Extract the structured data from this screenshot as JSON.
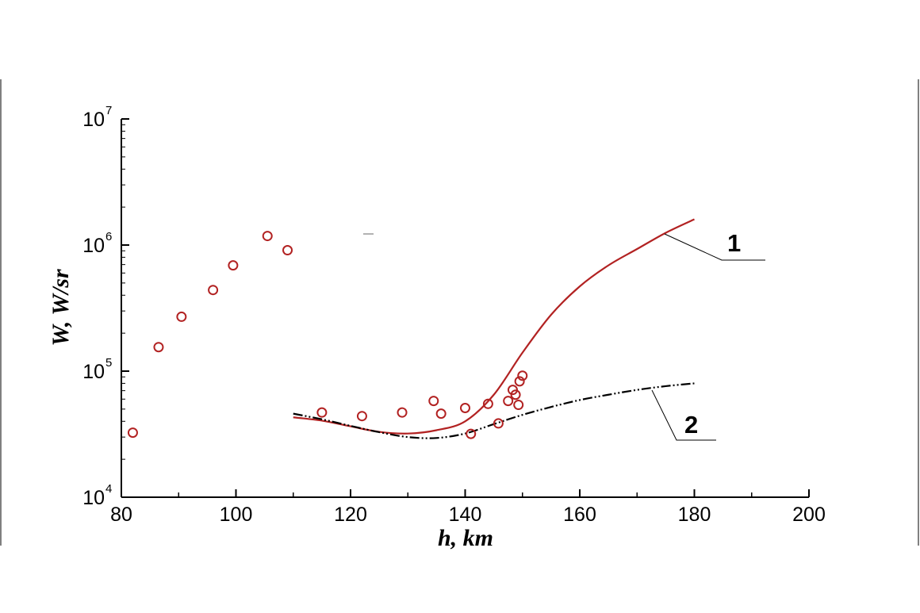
{
  "chart_data": {
    "type": "scatter",
    "title": "",
    "xlabel": "h, km",
    "ylabel": "W, W/sr",
    "xlim": [
      80,
      200
    ],
    "ylim": [
      10000,
      10000000
    ],
    "yscale": "log",
    "grid": false,
    "x_ticks": [
      "80",
      "100",
      "120",
      "140",
      "160",
      "180",
      "200"
    ],
    "y_ticks": [
      {
        "base": "10",
        "exp": "4",
        "value": 10000
      },
      {
        "base": "10",
        "exp": "5",
        "value": 100000
      },
      {
        "base": "10",
        "exp": "6",
        "value": 1000000
      },
      {
        "base": "10",
        "exp": "7",
        "value": 10000000
      }
    ],
    "series": [
      {
        "kind": "markers",
        "marker": "open-circle",
        "color": "#b22222",
        "points": [
          {
            "x": 82,
            "y": 32500
          },
          {
            "x": 86.5,
            "y": 155000
          },
          {
            "x": 90.5,
            "y": 270000
          },
          {
            "x": 96,
            "y": 440000
          },
          {
            "x": 99.5,
            "y": 690000
          },
          {
            "x": 105.5,
            "y": 1180000
          },
          {
            "x": 109,
            "y": 910000
          },
          {
            "x": 115,
            "y": 47000
          },
          {
            "x": 122,
            "y": 44000
          },
          {
            "x": 129,
            "y": 47000
          },
          {
            "x": 134.5,
            "y": 58000
          },
          {
            "x": 135.8,
            "y": 46000
          },
          {
            "x": 140,
            "y": 51000
          },
          {
            "x": 141,
            "y": 31800
          },
          {
            "x": 144,
            "y": 55000
          },
          {
            "x": 145.8,
            "y": 38500
          },
          {
            "x": 147.5,
            "y": 58000
          },
          {
            "x": 148.3,
            "y": 71000
          },
          {
            "x": 148.8,
            "y": 65000
          },
          {
            "x": 149.3,
            "y": 54000
          },
          {
            "x": 149.5,
            "y": 83000
          },
          {
            "x": 150,
            "y": 92000
          }
        ]
      },
      {
        "kind": "line",
        "label": "1",
        "color": "#b22222",
        "dash": "solid",
        "points": [
          {
            "x": 110,
            "y": 43000
          },
          {
            "x": 115,
            "y": 40500
          },
          {
            "x": 120,
            "y": 36500
          },
          {
            "x": 125,
            "y": 33000
          },
          {
            "x": 130,
            "y": 32000
          },
          {
            "x": 135,
            "y": 34000
          },
          {
            "x": 140,
            "y": 40000
          },
          {
            "x": 145,
            "y": 65000
          },
          {
            "x": 150,
            "y": 140000
          },
          {
            "x": 155,
            "y": 280000
          },
          {
            "x": 160,
            "y": 470000
          },
          {
            "x": 165,
            "y": 690000
          },
          {
            "x": 170,
            "y": 930000
          },
          {
            "x": 175,
            "y": 1250000
          },
          {
            "x": 180,
            "y": 1600000
          }
        ]
      },
      {
        "kind": "line",
        "label": "2",
        "color": "#000000",
        "dash": "dash-dot-dot",
        "points": [
          {
            "x": 110,
            "y": 46000
          },
          {
            "x": 115,
            "y": 41500
          },
          {
            "x": 120,
            "y": 36800
          },
          {
            "x": 125,
            "y": 32800
          },
          {
            "x": 130,
            "y": 30000
          },
          {
            "x": 135,
            "y": 29500
          },
          {
            "x": 140,
            "y": 32000
          },
          {
            "x": 145,
            "y": 38000
          },
          {
            "x": 150,
            "y": 45000
          },
          {
            "x": 155,
            "y": 52000
          },
          {
            "x": 160,
            "y": 59000
          },
          {
            "x": 165,
            "y": 65000
          },
          {
            "x": 170,
            "y": 71000
          },
          {
            "x": 175,
            "y": 76000
          },
          {
            "x": 180,
            "y": 80000
          }
        ]
      }
    ]
  }
}
